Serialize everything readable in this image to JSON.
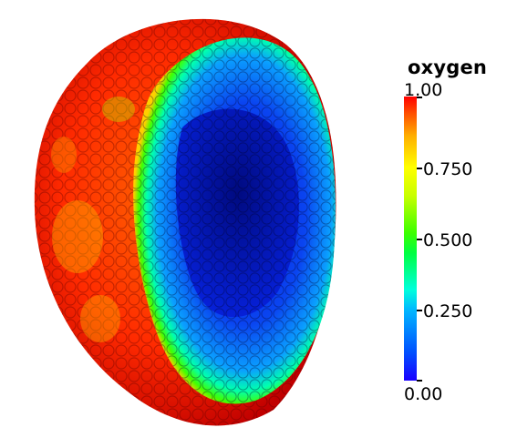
{
  "colorbar": {
    "title": "oxygen",
    "min": 0.0,
    "max": 1.0,
    "labels": [
      "1.00",
      "0.750",
      "0.500",
      "0.250",
      "0.00"
    ],
    "colors": [
      "#ff0000",
      "#ffff00",
      "#00ff00",
      "#00ffff",
      "#1a00ff"
    ]
  },
  "visualization": {
    "subject": "spheroid cell cluster cross-section",
    "outer_color": "#ff2a00",
    "inner_color": "#0a2fe8",
    "rim_color": "#00ff40"
  }
}
